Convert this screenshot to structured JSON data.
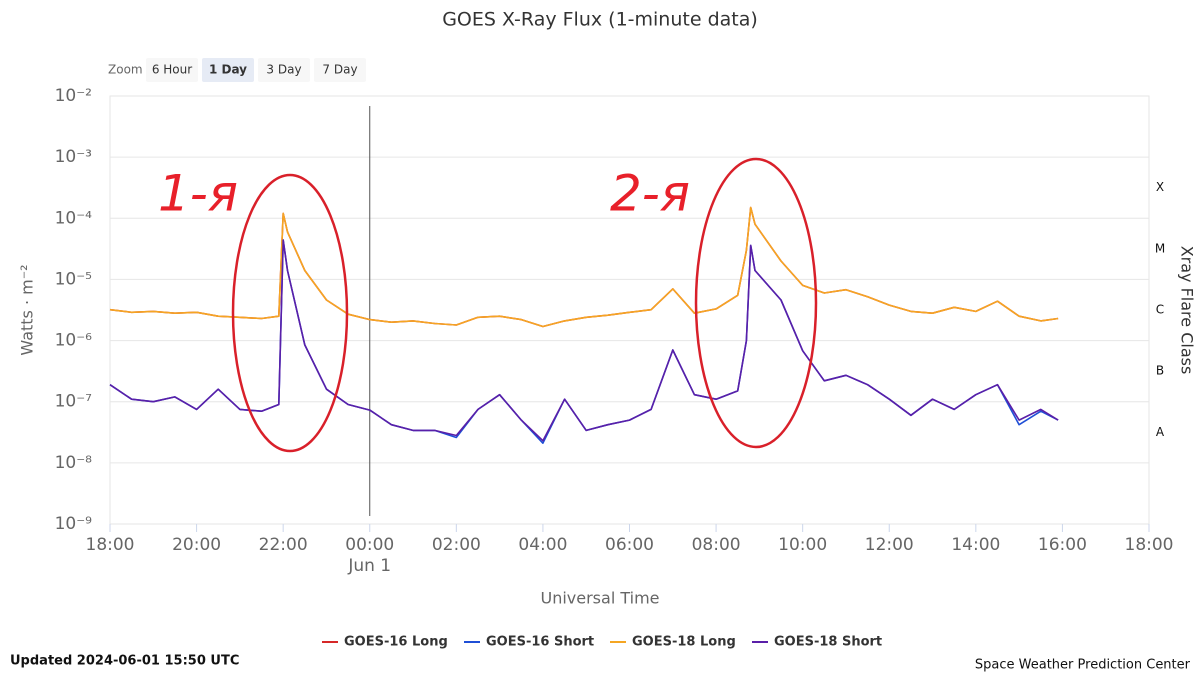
{
  "chart_data": {
    "type": "line",
    "title": "GOES X-Ray Flux (1-minute data)",
    "zoom": {
      "label": "Zoom",
      "buttons": [
        "6 Hour",
        "1 Day",
        "3 Day",
        "7 Day"
      ],
      "selected": "1 Day"
    },
    "x_label": "Universal Time",
    "y_label": "Watts · m⁻²",
    "y2_label": "Xray Flare Class",
    "ylog": true,
    "grid": true,
    "xlim": [
      18,
      42
    ],
    "xticks": [
      {
        "value": 18,
        "label": "18:00"
      },
      {
        "value": 20,
        "label": "20:00"
      },
      {
        "value": 22,
        "label": "22:00"
      },
      {
        "value": 24,
        "label": "00:00"
      },
      {
        "value": 26,
        "label": "02:00"
      },
      {
        "value": 28,
        "label": "04:00"
      },
      {
        "value": 30,
        "label": "06:00"
      },
      {
        "value": 32,
        "label": "08:00"
      },
      {
        "value": 34,
        "label": "10:00"
      },
      {
        "value": 36,
        "label": "12:00"
      },
      {
        "value": 38,
        "label": "14:00"
      },
      {
        "value": 40,
        "label": "16:00"
      },
      {
        "value": 42,
        "label": "18:00"
      }
    ],
    "x_date_marker": {
      "value": 24,
      "label": "Jun 1"
    },
    "ylim": [
      1e-09,
      0.01
    ],
    "yticks": [
      {
        "value": 0.01,
        "label": "10⁻²"
      },
      {
        "value": 0.001,
        "label": "10⁻³"
      },
      {
        "value": 0.0001,
        "label": "10⁻⁴"
      },
      {
        "value": 1e-05,
        "label": "10⁻⁵"
      },
      {
        "value": 1e-06,
        "label": "10⁻⁶"
      },
      {
        "value": 1e-07,
        "label": "10⁻⁷"
      },
      {
        "value": 1e-08,
        "label": "10⁻⁸"
      },
      {
        "value": 1e-09,
        "label": "10⁻⁹"
      }
    ],
    "y2lim": [
      1e-09,
      0.01
    ],
    "y2ticks": [
      {
        "value": 0.000316,
        "label": "X"
      },
      {
        "value": 3.16e-05,
        "label": "M"
      },
      {
        "value": 3.16e-06,
        "label": "C"
      },
      {
        "value": 3.16e-07,
        "label": "B"
      },
      {
        "value": 3.16e-08,
        "label": "A"
      }
    ],
    "x": [
      18,
      18.5,
      19,
      19.5,
      20,
      20.5,
      21,
      21.5,
      21.9,
      22,
      22.1,
      22.5,
      23,
      23.5,
      24,
      24.5,
      25,
      25.5,
      26,
      26.5,
      27,
      27.5,
      28,
      28.5,
      29,
      29.5,
      30,
      30.5,
      31,
      31.5,
      32,
      32.5,
      32.7,
      32.8,
      32.9,
      33.5,
      34,
      34.5,
      35,
      35.5,
      36,
      36.5,
      37,
      37.5,
      38,
      38.5,
      39,
      39.5,
      39.9
    ],
    "series": [
      {
        "name": "GOES-16 Long",
        "color": "#d62728",
        "values": [
          3.2e-06,
          2.9e-06,
          3e-06,
          2.8e-06,
          2.9e-06,
          2.5e-06,
          2.4e-06,
          2.3e-06,
          2.5e-06,
          0.00012,
          6e-05,
          1.4e-05,
          4.6e-06,
          2.7e-06,
          2.2e-06,
          2e-06,
          2.1e-06,
          1.9e-06,
          1.8e-06,
          2.4e-06,
          2.5e-06,
          2.2e-06,
          1.7e-06,
          2.1e-06,
          2.4e-06,
          2.6e-06,
          2.9e-06,
          3.2e-06,
          7e-06,
          2.8e-06,
          3.3e-06,
          5.5e-06,
          3e-05,
          0.00015,
          8e-05,
          2e-05,
          8e-06,
          6e-06,
          6.8e-06,
          5.2e-06,
          3.8e-06,
          3e-06,
          2.8e-06,
          3.5e-06,
          3e-06,
          4.4e-06,
          2.5e-06,
          2.1e-06,
          2.3e-06
        ]
      },
      {
        "name": "GOES-16 Short",
        "color": "#1f4fd6",
        "values": [
          1.9e-07,
          1.1e-07,
          1e-07,
          1.2e-07,
          7.5e-08,
          1.6e-07,
          7.5e-08,
          7e-08,
          9e-08,
          4.4e-05,
          1.4e-05,
          8.5e-07,
          1.6e-07,
          9e-08,
          7.3e-08,
          4.2e-08,
          3.4e-08,
          3.4e-08,
          2.6e-08,
          7.5e-08,
          1.3e-07,
          5e-08,
          2.1e-08,
          1.1e-07,
          3.4e-08,
          4.2e-08,
          5e-08,
          7.5e-08,
          7e-07,
          1.3e-07,
          1.1e-07,
          1.5e-07,
          1e-06,
          3.6e-05,
          1.4e-05,
          4.6e-06,
          6.8e-07,
          2.2e-07,
          2.7e-07,
          1.9e-07,
          1.1e-07,
          6e-08,
          1.1e-07,
          7.5e-08,
          1.3e-07,
          1.9e-07,
          4.2e-08,
          7e-08,
          5e-08
        ]
      },
      {
        "name": "GOES-18 Long",
        "color": "#f5a623",
        "values": [
          3.2e-06,
          2.9e-06,
          3e-06,
          2.8e-06,
          2.9e-06,
          2.5e-06,
          2.4e-06,
          2.3e-06,
          2.5e-06,
          0.00012,
          6e-05,
          1.4e-05,
          4.6e-06,
          2.7e-06,
          2.2e-06,
          2e-06,
          2.1e-06,
          1.9e-06,
          1.8e-06,
          2.4e-06,
          2.5e-06,
          2.2e-06,
          1.7e-06,
          2.1e-06,
          2.4e-06,
          2.6e-06,
          2.9e-06,
          3.2e-06,
          7e-06,
          2.8e-06,
          3.3e-06,
          5.5e-06,
          3e-05,
          0.00015,
          8e-05,
          2e-05,
          8e-06,
          6e-06,
          6.8e-06,
          5.2e-06,
          3.8e-06,
          3e-06,
          2.8e-06,
          3.5e-06,
          3e-06,
          4.4e-06,
          2.5e-06,
          2.1e-06,
          2.3e-06
        ]
      },
      {
        "name": "GOES-18 Short",
        "color": "#5a1fa8",
        "values": [
          1.9e-07,
          1.1e-07,
          1e-07,
          1.2e-07,
          7.5e-08,
          1.6e-07,
          7.5e-08,
          7e-08,
          9e-08,
          4.4e-05,
          1.4e-05,
          8.5e-07,
          1.6e-07,
          9e-08,
          7.3e-08,
          4.2e-08,
          3.4e-08,
          3.4e-08,
          2.8e-08,
          7.5e-08,
          1.3e-07,
          5e-08,
          2.3e-08,
          1.1e-07,
          3.4e-08,
          4.2e-08,
          5e-08,
          7.5e-08,
          7e-07,
          1.3e-07,
          1.1e-07,
          1.5e-07,
          1e-06,
          3.6e-05,
          1.4e-05,
          4.6e-06,
          6.8e-07,
          2.2e-07,
          2.7e-07,
          1.9e-07,
          1.1e-07,
          6e-08,
          1.1e-07,
          7.5e-08,
          1.3e-07,
          1.9e-07,
          5e-08,
          7.5e-08,
          5e-08
        ]
      }
    ],
    "annotations": [
      "1-я",
      "2-я"
    ],
    "updated": "Updated 2024-06-01 15:50 UTC",
    "credit": "Space Weather Prediction Center"
  }
}
